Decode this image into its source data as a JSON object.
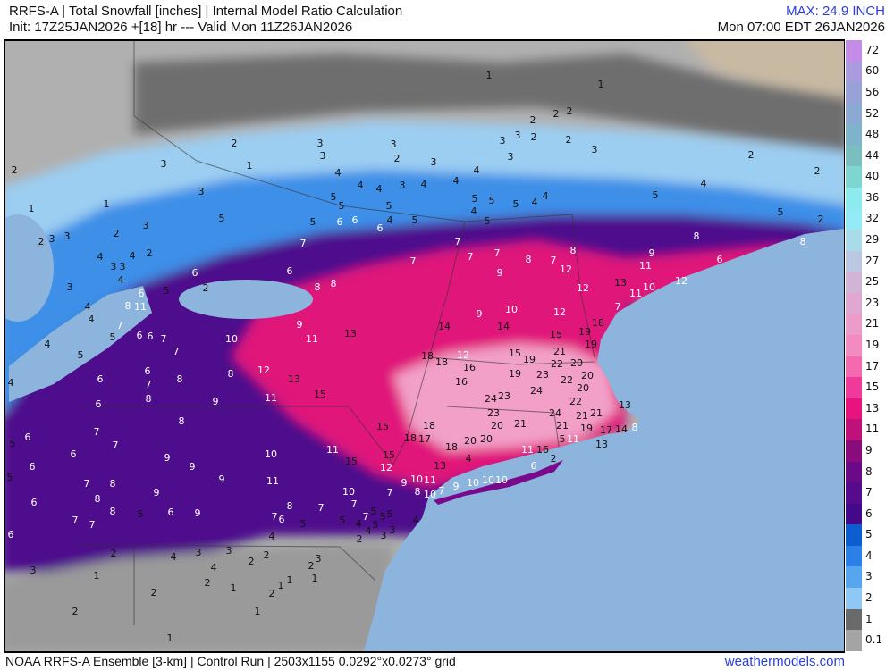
{
  "header": {
    "title": "RRFS-A | Total Snowfall [inches] | Internal Model Ratio Calculation",
    "subtitle": "Init: 17Z25JAN2026 +[18] hr --- Valid Mon 11Z26JAN2026",
    "max": "MAX: 24.9 INCH",
    "valid_local": "Mon 07:00 EDT 26JAN2026"
  },
  "footer": {
    "info": "NOAA RRFS-A Ensemble [3-km] | Control Run | 2503x1155 0.0292°x0.0273° grid",
    "brand": "weathermodels.com"
  },
  "colorbar": {
    "labels": [
      "72",
      "60",
      "56",
      "52",
      "48",
      "44",
      "40",
      "36",
      "32",
      "29",
      "27",
      "25",
      "23",
      "21",
      "19",
      "17",
      "15",
      "13",
      "11",
      "9",
      "8",
      "7",
      "6",
      "5",
      "4",
      "3",
      "2",
      "1",
      "0.1"
    ],
    "colors": [
      "#c58be8",
      "#a99bdd",
      "#98a2d8",
      "#8aa9d3",
      "#7fb3c9",
      "#79bfc0",
      "#7fd6d0",
      "#8cebed",
      "#93ecf5",
      "#a8dce8",
      "#bcc8e2",
      "#d2b5d6",
      "#e0a8d0",
      "#eb9cc8",
      "#f28bbf",
      "#f569ae",
      "#f0399a",
      "#e8147e",
      "#c0107a",
      "#8a0c7c",
      "#6a0a88",
      "#560a8e",
      "#44088a",
      "#0c5ed0",
      "#2a80e6",
      "#55a6ef",
      "#8fc8f4",
      "#6a6a6a",
      "#a4a4a4"
    ]
  },
  "map": {
    "colors": {
      "ocean": "#8db4dc",
      "land_nosnow": "#c8b9a3",
      "trace": "#b0b0b0",
      "gray_dark": "#6e6e6e",
      "light_blue": "#9ccef2",
      "blue": "#3d8fe8",
      "purple": "#4d0a8c",
      "magenta": "#e0157a",
      "pink": "#f2a0c8"
    },
    "snow_labels": [
      1,
      1,
      2,
      2,
      2,
      2,
      3,
      3,
      3,
      2,
      3,
      3,
      3,
      2,
      3,
      2,
      3,
      1,
      4,
      4,
      4,
      3,
      4,
      4,
      4,
      5,
      5,
      4,
      5,
      4,
      5,
      5,
      5,
      4,
      5,
      4,
      5,
      3,
      2,
      3,
      1,
      1,
      5,
      5,
      6,
      6,
      6,
      2,
      3,
      2,
      3,
      3,
      4,
      2,
      4,
      3,
      3,
      4,
      3,
      5,
      6,
      6,
      2,
      7,
      7,
      7,
      7,
      7,
      8,
      7,
      8,
      9,
      12,
      9,
      8,
      11,
      6,
      4,
      5,
      5,
      2,
      2,
      2,
      8,
      12,
      10,
      13,
      11,
      7,
      12,
      8,
      8,
      6,
      4,
      4,
      8,
      11,
      7,
      5,
      6,
      6,
      7,
      4,
      5,
      7,
      10,
      11,
      9,
      13,
      14,
      9,
      14,
      10,
      12,
      18,
      19,
      19,
      15,
      21,
      22,
      19,
      15,
      20,
      20,
      12,
      18,
      18,
      16,
      16,
      19,
      23,
      22,
      20,
      24,
      24,
      23,
      22,
      13,
      24,
      21,
      21,
      23,
      20,
      21,
      19,
      17,
      14,
      8,
      21,
      5,
      11,
      13,
      11,
      16,
      2,
      6,
      12,
      13,
      15,
      11,
      8,
      9,
      8,
      6,
      6,
      8,
      7,
      4,
      6,
      8,
      15,
      18,
      17,
      18,
      18,
      20,
      20,
      15,
      12,
      13,
      4,
      11,
      15,
      10,
      11,
      9,
      9,
      9,
      7,
      6,
      5,
      6,
      7,
      5,
      6,
      7,
      8,
      6,
      9,
      8,
      8,
      7,
      7,
      5,
      6,
      9,
      8,
      7,
      7,
      10,
      7,
      9,
      10,
      11,
      8,
      10,
      7,
      9,
      10,
      10,
      10,
      7,
      5,
      5,
      5,
      4,
      5,
      5,
      5,
      7,
      6,
      4,
      4,
      2,
      4,
      3,
      3,
      6,
      2,
      4,
      3,
      2,
      3,
      2,
      3,
      4,
      3,
      2,
      1,
      2,
      1,
      1,
      1,
      2,
      1,
      2,
      1,
      2,
      1
    ]
  }
}
